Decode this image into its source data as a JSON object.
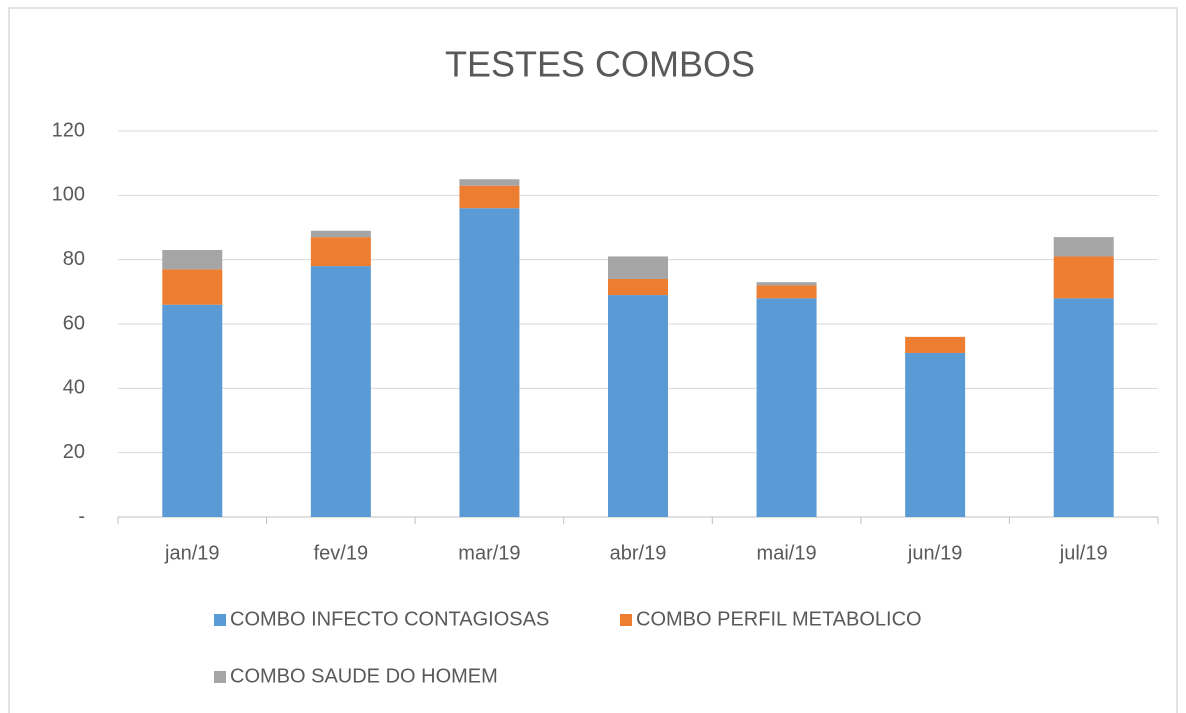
{
  "chart_data": {
    "type": "stacked_bar",
    "title": "TESTES COMBOS",
    "categories": [
      "jan/19",
      "fev/19",
      "mar/19",
      "abr/19",
      "mai/19",
      "jun/19",
      "jul/19"
    ],
    "series": [
      {
        "name": "COMBO INFECTO CONTAGIOSAS",
        "color": "#5b9bd5",
        "values": [
          66,
          78,
          96,
          69,
          68,
          51,
          68
        ]
      },
      {
        "name": "COMBO PERFIL METABOLICO",
        "color": "#ed7d31",
        "values": [
          11,
          9,
          7,
          5,
          4,
          5,
          13
        ]
      },
      {
        "name": "COMBO SAUDE DO HOMEM",
        "color": "#a5a5a5",
        "values": [
          6,
          2,
          2,
          7,
          1,
          0,
          6
        ]
      }
    ],
    "ylim": [
      0,
      120
    ],
    "yticks": [
      {
        "value": 0,
        "label": "-"
      },
      20,
      40,
      60,
      80,
      100,
      120
    ],
    "grid": true,
    "legend": "bottom"
  }
}
